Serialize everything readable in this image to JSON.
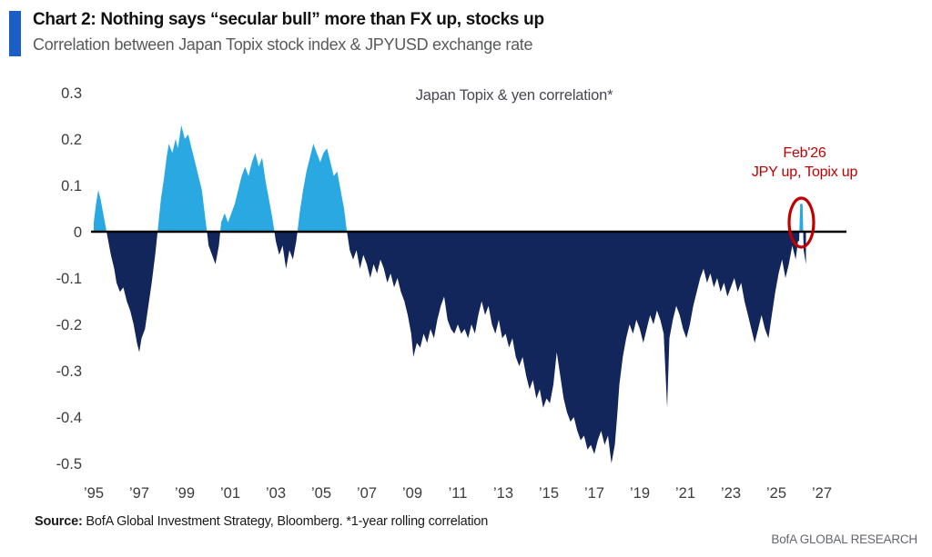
{
  "header": {
    "accent_color": "#1A5EC6",
    "title": "Chart 2: Nothing says “secular bull” more than FX up, stocks up",
    "subtitle": "Correlation between Japan Topix stock index & JPYUSD exchange rate"
  },
  "footer": {
    "source_label": "Source:",
    "source_text": " BofA Global Investment Strategy, Bloomberg. *1-year rolling correlation",
    "brand": "BofA GLOBAL RESEARCH"
  },
  "chart_data": {
    "type": "area",
    "title": "Japan Topix & yen correlation*",
    "xlabel": "",
    "ylabel": "",
    "grid": false,
    "legend_position": "none",
    "y_axis": {
      "range": [
        -0.5,
        0.3
      ],
      "ticks": [
        0.3,
        0.2,
        0.1,
        0,
        -0.1,
        -0.2,
        -0.3,
        -0.4,
        -0.5
      ],
      "tick_labels": [
        "0.3",
        "0.2",
        "0.1",
        "0",
        "-0.1",
        "-0.2",
        "-0.3",
        "-0.4",
        "-0.5"
      ]
    },
    "x_axis": {
      "range": [
        1994.9,
        2028.1
      ],
      "tick_years": [
        1995,
        1997,
        1999,
        2001,
        2003,
        2005,
        2007,
        2009,
        2011,
        2013,
        2015,
        2017,
        2019,
        2021,
        2023,
        2025,
        2027
      ],
      "tick_labels": [
        "’95",
        "’97",
        "’99",
        "’01",
        "’03",
        "’05",
        "’07",
        "’09",
        "’11",
        "’13",
        "’15",
        "’17",
        "’19",
        "’21",
        "’23",
        "’25",
        "’27"
      ]
    },
    "colors": {
      "positive": "#29A8E1",
      "negative": "#13265C",
      "zero_line": "#000000",
      "annotation": "#C00000"
    },
    "annotation": {
      "line1": "Feb'26",
      "line2": "JPY up, Topix up",
      "x_year": 2026.1,
      "circled_value": 0.06
    },
    "series": [
      {
        "name": "1-year rolling correlation, Japan Topix & JPYUSD",
        "points": [
          [
            1995.0,
            0.02
          ],
          [
            1995.1,
            0.06
          ],
          [
            1995.2,
            0.09
          ],
          [
            1995.3,
            0.07
          ],
          [
            1995.45,
            0.03
          ],
          [
            1995.6,
            -0.01
          ],
          [
            1995.75,
            -0.05
          ],
          [
            1995.9,
            -0.08
          ],
          [
            1996.0,
            -0.11
          ],
          [
            1996.15,
            -0.13
          ],
          [
            1996.3,
            -0.12
          ],
          [
            1996.45,
            -0.15
          ],
          [
            1996.6,
            -0.17
          ],
          [
            1996.75,
            -0.2
          ],
          [
            1996.9,
            -0.24
          ],
          [
            1997.0,
            -0.26
          ],
          [
            1997.1,
            -0.23
          ],
          [
            1997.25,
            -0.21
          ],
          [
            1997.4,
            -0.16
          ],
          [
            1997.55,
            -0.11
          ],
          [
            1997.7,
            -0.05
          ],
          [
            1997.85,
            0.02
          ],
          [
            1997.95,
            0.07
          ],
          [
            1998.1,
            0.12
          ],
          [
            1998.2,
            0.16
          ],
          [
            1998.3,
            0.19
          ],
          [
            1998.45,
            0.17
          ],
          [
            1998.6,
            0.2
          ],
          [
            1998.7,
            0.18
          ],
          [
            1998.85,
            0.23
          ],
          [
            1999.0,
            0.2
          ],
          [
            1999.15,
            0.21
          ],
          [
            1999.3,
            0.18
          ],
          [
            1999.45,
            0.15
          ],
          [
            1999.6,
            0.12
          ],
          [
            1999.75,
            0.09
          ],
          [
            1999.9,
            0.03
          ],
          [
            2000.05,
            -0.03
          ],
          [
            2000.2,
            -0.05
          ],
          [
            2000.35,
            -0.07
          ],
          [
            2000.5,
            -0.03
          ],
          [
            2000.6,
            0.02
          ],
          [
            2000.75,
            0.04
          ],
          [
            2000.9,
            0.02
          ],
          [
            2001.05,
            0.04
          ],
          [
            2001.2,
            0.06
          ],
          [
            2001.35,
            0.09
          ],
          [
            2001.5,
            0.12
          ],
          [
            2001.65,
            0.14
          ],
          [
            2001.8,
            0.12
          ],
          [
            2001.95,
            0.15
          ],
          [
            2002.1,
            0.17
          ],
          [
            2002.25,
            0.14
          ],
          [
            2002.4,
            0.16
          ],
          [
            2002.55,
            0.11
          ],
          [
            2002.7,
            0.07
          ],
          [
            2002.85,
            0.03
          ],
          [
            2003.0,
            -0.02
          ],
          [
            2003.15,
            -0.05
          ],
          [
            2003.3,
            -0.03
          ],
          [
            2003.45,
            -0.08
          ],
          [
            2003.6,
            -0.04
          ],
          [
            2003.75,
            -0.06
          ],
          [
            2003.9,
            -0.02
          ],
          [
            2004.05,
            0.04
          ],
          [
            2004.2,
            0.09
          ],
          [
            2004.35,
            0.13
          ],
          [
            2004.5,
            0.16
          ],
          [
            2004.65,
            0.19
          ],
          [
            2004.8,
            0.17
          ],
          [
            2004.95,
            0.15
          ],
          [
            2005.1,
            0.17
          ],
          [
            2005.25,
            0.18
          ],
          [
            2005.4,
            0.15
          ],
          [
            2005.55,
            0.12
          ],
          [
            2005.7,
            0.13
          ],
          [
            2005.85,
            0.09
          ],
          [
            2006.0,
            0.05
          ],
          [
            2006.1,
            0.01
          ],
          [
            2006.25,
            -0.04
          ],
          [
            2006.4,
            -0.06
          ],
          [
            2006.55,
            -0.04
          ],
          [
            2006.7,
            -0.08
          ],
          [
            2006.85,
            -0.05
          ],
          [
            2007.0,
            -0.07
          ],
          [
            2007.15,
            -0.1
          ],
          [
            2007.3,
            -0.07
          ],
          [
            2007.45,
            -0.09
          ],
          [
            2007.6,
            -0.06
          ],
          [
            2007.75,
            -0.08
          ],
          [
            2007.9,
            -0.11
          ],
          [
            2008.05,
            -0.09
          ],
          [
            2008.2,
            -0.12
          ],
          [
            2008.35,
            -0.1
          ],
          [
            2008.5,
            -0.13
          ],
          [
            2008.65,
            -0.15
          ],
          [
            2008.8,
            -0.18
          ],
          [
            2008.95,
            -0.22
          ],
          [
            2009.05,
            -0.27
          ],
          [
            2009.2,
            -0.24
          ],
          [
            2009.35,
            -0.25
          ],
          [
            2009.5,
            -0.22
          ],
          [
            2009.65,
            -0.24
          ],
          [
            2009.8,
            -0.21
          ],
          [
            2009.95,
            -0.23
          ],
          [
            2010.1,
            -0.19
          ],
          [
            2010.25,
            -0.16
          ],
          [
            2010.4,
            -0.14
          ],
          [
            2010.55,
            -0.19
          ],
          [
            2010.7,
            -0.21
          ],
          [
            2010.85,
            -0.22
          ],
          [
            2011.0,
            -0.2
          ],
          [
            2011.15,
            -0.22
          ],
          [
            2011.3,
            -0.21
          ],
          [
            2011.45,
            -0.23
          ],
          [
            2011.6,
            -0.2
          ],
          [
            2011.75,
            -0.22
          ],
          [
            2011.9,
            -0.18
          ],
          [
            2012.05,
            -0.15
          ],
          [
            2012.2,
            -0.18
          ],
          [
            2012.35,
            -0.16
          ],
          [
            2012.5,
            -0.2
          ],
          [
            2012.65,
            -0.22
          ],
          [
            2012.8,
            -0.19
          ],
          [
            2012.95,
            -0.23
          ],
          [
            2013.1,
            -0.22
          ],
          [
            2013.25,
            -0.25
          ],
          [
            2013.4,
            -0.23
          ],
          [
            2013.55,
            -0.27
          ],
          [
            2013.7,
            -0.29
          ],
          [
            2013.85,
            -0.27
          ],
          [
            2014.0,
            -0.31
          ],
          [
            2014.15,
            -0.34
          ],
          [
            2014.3,
            -0.32
          ],
          [
            2014.45,
            -0.36
          ],
          [
            2014.6,
            -0.34
          ],
          [
            2014.75,
            -0.38
          ],
          [
            2014.9,
            -0.36
          ],
          [
            2015.05,
            -0.37
          ],
          [
            2015.2,
            -0.33
          ],
          [
            2015.35,
            -0.26
          ],
          [
            2015.5,
            -0.31
          ],
          [
            2015.65,
            -0.36
          ],
          [
            2015.8,
            -0.39
          ],
          [
            2015.95,
            -0.41
          ],
          [
            2016.1,
            -0.4
          ],
          [
            2016.25,
            -0.43
          ],
          [
            2016.4,
            -0.45
          ],
          [
            2016.55,
            -0.44
          ],
          [
            2016.7,
            -0.47
          ],
          [
            2016.85,
            -0.46
          ],
          [
            2017.0,
            -0.48
          ],
          [
            2017.15,
            -0.45
          ],
          [
            2017.3,
            -0.43
          ],
          [
            2017.45,
            -0.46
          ],
          [
            2017.6,
            -0.44
          ],
          [
            2017.75,
            -0.5
          ],
          [
            2017.9,
            -0.46
          ],
          [
            2018.0,
            -0.4
          ],
          [
            2018.1,
            -0.33
          ],
          [
            2018.25,
            -0.27
          ],
          [
            2018.4,
            -0.23
          ],
          [
            2018.55,
            -0.2
          ],
          [
            2018.7,
            -0.22
          ],
          [
            2018.85,
            -0.19
          ],
          [
            2019.0,
            -0.21
          ],
          [
            2019.15,
            -0.24
          ],
          [
            2019.3,
            -0.21
          ],
          [
            2019.45,
            -0.18
          ],
          [
            2019.6,
            -0.2
          ],
          [
            2019.75,
            -0.17
          ],
          [
            2019.9,
            -0.19
          ],
          [
            2020.05,
            -0.22
          ],
          [
            2020.2,
            -0.38
          ],
          [
            2020.3,
            -0.23
          ],
          [
            2020.45,
            -0.19
          ],
          [
            2020.6,
            -0.16
          ],
          [
            2020.75,
            -0.18
          ],
          [
            2020.9,
            -0.21
          ],
          [
            2021.05,
            -0.23
          ],
          [
            2021.2,
            -0.2
          ],
          [
            2021.35,
            -0.16
          ],
          [
            2021.5,
            -0.13
          ],
          [
            2021.65,
            -0.1
          ],
          [
            2021.8,
            -0.08
          ],
          [
            2021.95,
            -0.11
          ],
          [
            2022.1,
            -0.09
          ],
          [
            2022.25,
            -0.12
          ],
          [
            2022.4,
            -0.1
          ],
          [
            2022.55,
            -0.13
          ],
          [
            2022.7,
            -0.11
          ],
          [
            2022.85,
            -0.14
          ],
          [
            2023.0,
            -0.12
          ],
          [
            2023.15,
            -0.1
          ],
          [
            2023.3,
            -0.13
          ],
          [
            2023.45,
            -0.11
          ],
          [
            2023.6,
            -0.15
          ],
          [
            2023.75,
            -0.18
          ],
          [
            2023.9,
            -0.21
          ],
          [
            2024.05,
            -0.24
          ],
          [
            2024.2,
            -0.21
          ],
          [
            2024.35,
            -0.18
          ],
          [
            2024.5,
            -0.21
          ],
          [
            2024.65,
            -0.23
          ],
          [
            2024.8,
            -0.18
          ],
          [
            2024.95,
            -0.13
          ],
          [
            2025.1,
            -0.09
          ],
          [
            2025.25,
            -0.06
          ],
          [
            2025.4,
            -0.1
          ],
          [
            2025.55,
            -0.07
          ],
          [
            2025.7,
            -0.03
          ],
          [
            2025.85,
            -0.06
          ],
          [
            2025.95,
            -0.02
          ],
          [
            2026.0,
            -0.02
          ],
          [
            2026.05,
            0.06
          ],
          [
            2026.15,
            0.06
          ],
          [
            2026.2,
            -0.04
          ],
          [
            2026.3,
            -0.07
          ]
        ]
      }
    ]
  }
}
